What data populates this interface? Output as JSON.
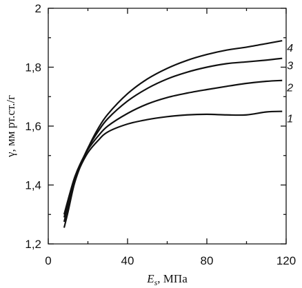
{
  "chart_data": {
    "type": "line",
    "xlabel": "E",
    "xlabel_subscript": "s",
    "xlabel_unit": ", МПа",
    "ylabel": "γ, мм рт.ст./г",
    "xlim": [
      0,
      120
    ],
    "ylim": [
      1.2,
      2.0
    ],
    "xticks": [
      0,
      40,
      80,
      120
    ],
    "xtick_labels": [
      "0",
      "40",
      "80",
      "120"
    ],
    "yticks": [
      1.2,
      1.4,
      1.6,
      1.8,
      2.0
    ],
    "ytick_labels": [
      "1,2",
      "1,4",
      "1,6",
      "1,8",
      "2"
    ],
    "grid": false,
    "series": [
      {
        "name": "1",
        "x": [
          8,
          10,
          13,
          16,
          20,
          25,
          30,
          40,
          50,
          60,
          70,
          80,
          90,
          100,
          110,
          118
        ],
        "y": [
          1.29,
          1.34,
          1.41,
          1.46,
          1.51,
          1.55,
          1.58,
          1.607,
          1.622,
          1.632,
          1.638,
          1.64,
          1.638,
          1.638,
          1.648,
          1.65
        ]
      },
      {
        "name": "2",
        "x": [
          8,
          10,
          13,
          16,
          20,
          25,
          30,
          40,
          50,
          60,
          70,
          80,
          90,
          100,
          110,
          118
        ],
        "y": [
          1.3,
          1.35,
          1.42,
          1.47,
          1.52,
          1.565,
          1.6,
          1.643,
          1.675,
          1.697,
          1.712,
          1.724,
          1.735,
          1.745,
          1.752,
          1.755
        ]
      },
      {
        "name": "3",
        "x": [
          8,
          10,
          13,
          16,
          20,
          25,
          30,
          40,
          50,
          60,
          70,
          80,
          90,
          100,
          110,
          118
        ],
        "y": [
          1.275,
          1.33,
          1.41,
          1.465,
          1.525,
          1.58,
          1.625,
          1.685,
          1.728,
          1.76,
          1.783,
          1.8,
          1.812,
          1.818,
          1.824,
          1.83
        ]
      },
      {
        "name": "4",
        "x": [
          8,
          10,
          13,
          16,
          20,
          25,
          30,
          40,
          50,
          60,
          70,
          80,
          90,
          100,
          110,
          118
        ],
        "y": [
          1.255,
          1.31,
          1.4,
          1.46,
          1.525,
          1.59,
          1.64,
          1.71,
          1.76,
          1.796,
          1.823,
          1.843,
          1.858,
          1.868,
          1.88,
          1.89
        ]
      }
    ]
  }
}
